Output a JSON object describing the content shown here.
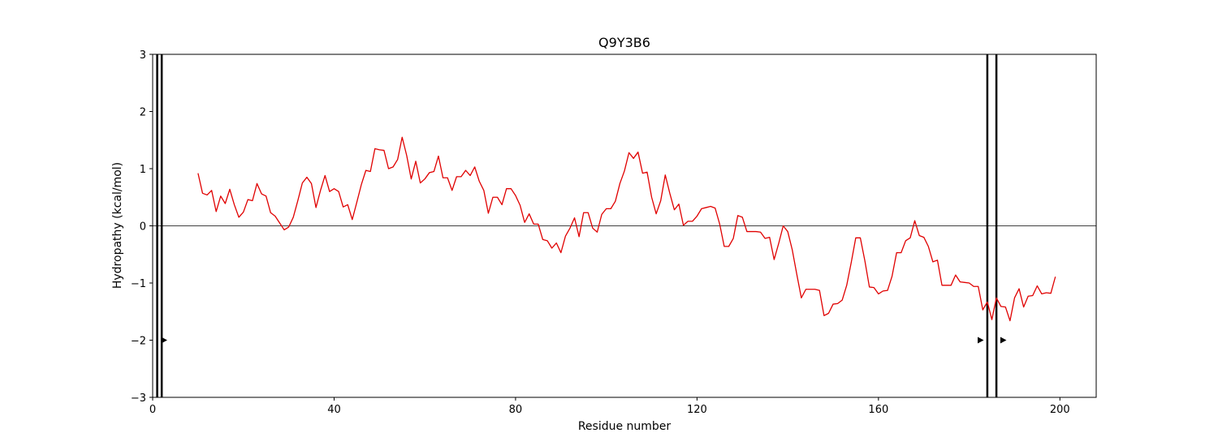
{
  "chart_data": {
    "type": "line",
    "title": "Q9Y3B6",
    "xlabel": "Residue number",
    "ylabel": "Hydropathy (kcal/mol)",
    "xlim": [
      0,
      208
    ],
    "ylim": [
      -3,
      3
    ],
    "xticks": [
      0,
      40,
      80,
      120,
      160,
      200
    ],
    "yticks": [
      -3,
      -2,
      -1,
      0,
      1,
      2,
      3
    ],
    "ytick_labels": [
      "−3",
      "−2",
      "−1",
      "0",
      "1",
      "2",
      "3"
    ],
    "grid": false,
    "zero_line": true,
    "series": [
      {
        "color": "#e00000",
        "x": [
          10,
          11,
          12,
          13,
          14,
          15,
          16,
          17,
          18,
          19,
          20,
          21,
          22,
          23,
          24,
          25,
          26,
          27,
          28,
          29,
          30,
          31,
          32,
          33,
          34,
          35,
          36,
          37,
          38,
          39,
          40,
          41,
          42,
          43,
          44,
          45,
          46,
          47,
          48,
          49,
          50,
          51,
          52,
          53,
          54,
          55,
          56,
          57,
          58,
          59,
          60,
          61,
          62,
          63,
          64,
          65,
          66,
          67,
          68,
          69,
          70,
          71,
          72,
          73,
          74,
          75,
          76,
          77,
          78,
          79,
          80,
          81,
          82,
          83,
          84,
          85,
          86,
          87,
          88,
          89,
          90,
          91,
          92,
          93,
          94,
          95,
          96,
          97,
          98,
          99,
          100,
          101,
          102,
          103,
          104,
          105,
          106,
          107,
          108,
          109,
          110,
          111,
          112,
          113,
          114,
          115,
          116,
          117,
          118,
          119,
          120,
          121,
          122,
          123,
          124,
          125,
          126,
          127,
          128,
          129,
          130,
          131,
          132,
          133,
          134,
          135,
          136,
          137,
          138,
          139,
          140,
          141,
          142,
          143,
          144,
          145,
          146,
          147,
          148,
          149,
          150,
          151,
          152,
          153,
          154,
          155,
          156,
          157,
          158,
          159,
          160,
          161,
          162,
          163,
          164,
          165,
          166,
          167,
          168,
          169,
          170,
          171,
          172,
          173,
          174,
          175,
          176,
          177,
          178,
          179,
          180,
          181,
          182,
          183,
          184,
          185,
          186,
          187,
          188,
          189,
          190,
          191,
          192,
          193,
          194,
          195,
          196,
          197,
          198,
          199
        ],
        "y": [
          0.92,
          0.57,
          0.54,
          0.62,
          0.25,
          0.52,
          0.39,
          0.64,
          0.37,
          0.15,
          0.24,
          0.46,
          0.44,
          0.74,
          0.56,
          0.52,
          0.23,
          0.17,
          0.05,
          -0.07,
          -0.02,
          0.15,
          0.44,
          0.75,
          0.85,
          0.74,
          0.32,
          0.62,
          0.88,
          0.6,
          0.65,
          0.6,
          0.33,
          0.37,
          0.11,
          0.41,
          0.72,
          0.97,
          0.95,
          1.35,
          1.33,
          1.32,
          1.0,
          1.03,
          1.16,
          1.55,
          1.23,
          0.82,
          1.13,
          0.75,
          0.82,
          0.93,
          0.95,
          1.22,
          0.84,
          0.84,
          0.62,
          0.86,
          0.86,
          0.97,
          0.88,
          1.03,
          0.78,
          0.62,
          0.22,
          0.5,
          0.5,
          0.37,
          0.65,
          0.65,
          0.53,
          0.36,
          0.06,
          0.21,
          0.03,
          0.03,
          -0.24,
          -0.26,
          -0.39,
          -0.3,
          -0.47,
          -0.18,
          -0.04,
          0.14,
          -0.19,
          0.23,
          0.23,
          -0.04,
          -0.11,
          0.2,
          0.3,
          0.3,
          0.43,
          0.74,
          0.96,
          1.28,
          1.18,
          1.29,
          0.92,
          0.94,
          0.5,
          0.21,
          0.44,
          0.89,
          0.57,
          0.28,
          0.38,
          0.01,
          0.08,
          0.08,
          0.17,
          0.3,
          0.32,
          0.34,
          0.31,
          0.03,
          -0.36,
          -0.36,
          -0.22,
          0.18,
          0.15,
          -0.1,
          -0.1,
          -0.1,
          -0.11,
          -0.22,
          -0.2,
          -0.59,
          -0.31,
          0.0,
          -0.1,
          -0.42,
          -0.85,
          -1.26,
          -1.11,
          -1.11,
          -1.11,
          -1.13,
          -1.57,
          -1.53,
          -1.37,
          -1.36,
          -1.3,
          -1.04,
          -0.64,
          -0.21,
          -0.21,
          -0.61,
          -1.07,
          -1.08,
          -1.19,
          -1.14,
          -1.13,
          -0.88,
          -0.47,
          -0.47,
          -0.26,
          -0.21,
          0.09,
          -0.17,
          -0.2,
          -0.36,
          -0.63,
          -0.6,
          -1.04,
          -1.04,
          -1.04,
          -0.86,
          -0.98,
          -0.99,
          -1.0,
          -1.06,
          -1.06,
          -1.47,
          -1.33,
          -1.64,
          -1.26,
          -1.41,
          -1.42,
          -1.66,
          -1.26,
          -1.1,
          -1.42,
          -1.23,
          -1.22,
          -1.05,
          -1.19,
          -1.17,
          -1.18,
          -0.89
        ]
      }
    ],
    "vlines": [
      1,
      2,
      184,
      186
    ],
    "markers": [
      {
        "x": 2.5,
        "y": -2
      },
      {
        "x": 182.5,
        "y": -2
      },
      {
        "x": 187.5,
        "y": -2
      }
    ]
  }
}
